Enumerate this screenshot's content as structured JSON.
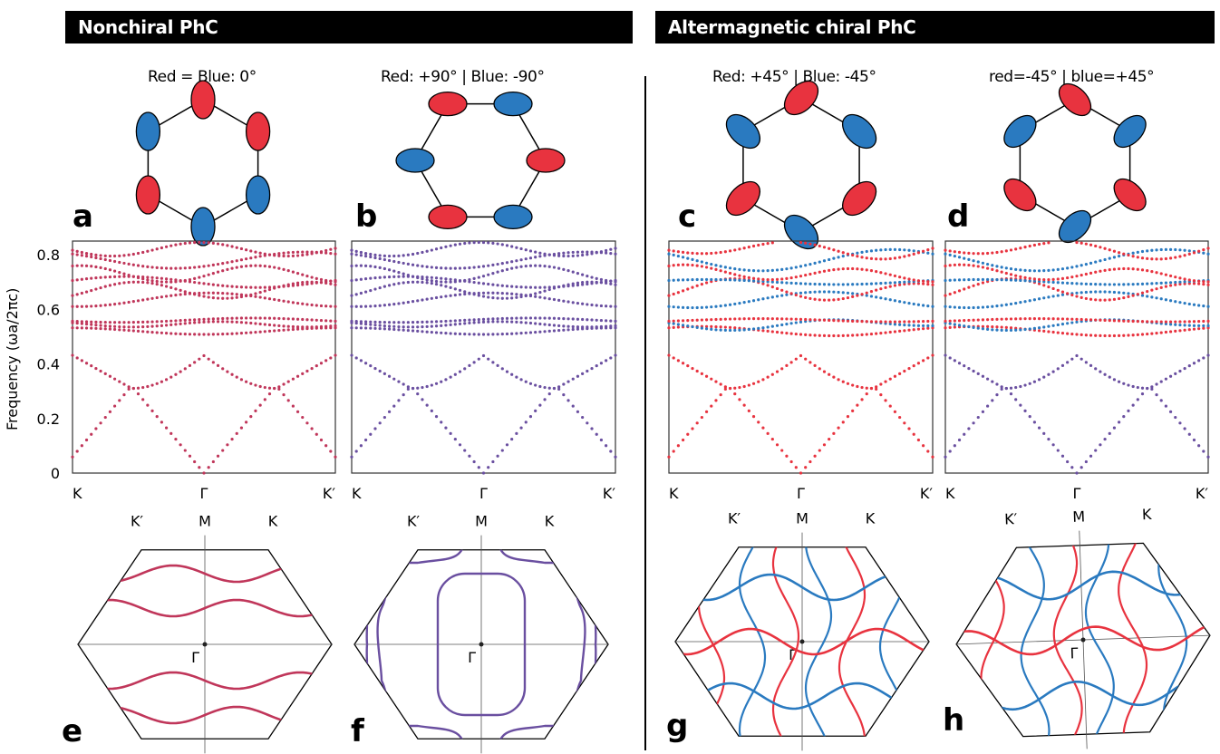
{
  "headers": {
    "left": "Nonchiral PhC",
    "right": "Altermagnetic chiral PhC"
  },
  "captions": {
    "a": "Red = Blue: 0°",
    "b": "Red: +90° | Blue: -90°",
    "c": "Red: +45° | Blue: -45°",
    "d": "red=-45° | blue=+45°"
  },
  "panel_letters": [
    "a",
    "b",
    "c",
    "d",
    "e",
    "f",
    "g",
    "h"
  ],
  "axis": {
    "ylabel": "Frequency (ωa/2πc)",
    "yticks": [
      "0",
      "0.2",
      "0.4",
      "0.6",
      "0.8"
    ],
    "xticks": [
      "K",
      "Γ",
      "K′"
    ]
  },
  "bz_labels": {
    "kprime": "K′",
    "m": "M",
    "k": "K",
    "gamma": "Γ"
  },
  "colors": {
    "red": "#e8333f",
    "blue": "#2a7ac0",
    "purple": "#6a4fa0",
    "magenta": "#c0365a"
  },
  "chart_data": {
    "type": "scatter",
    "x": [
      "K",
      "Γ",
      "K′"
    ],
    "ylabel": "Frequency (ωa/2πc)",
    "ylim": [
      0,
      0.85
    ],
    "yticks": [
      0,
      0.2,
      0.4,
      0.6,
      0.8
    ]
  }
}
